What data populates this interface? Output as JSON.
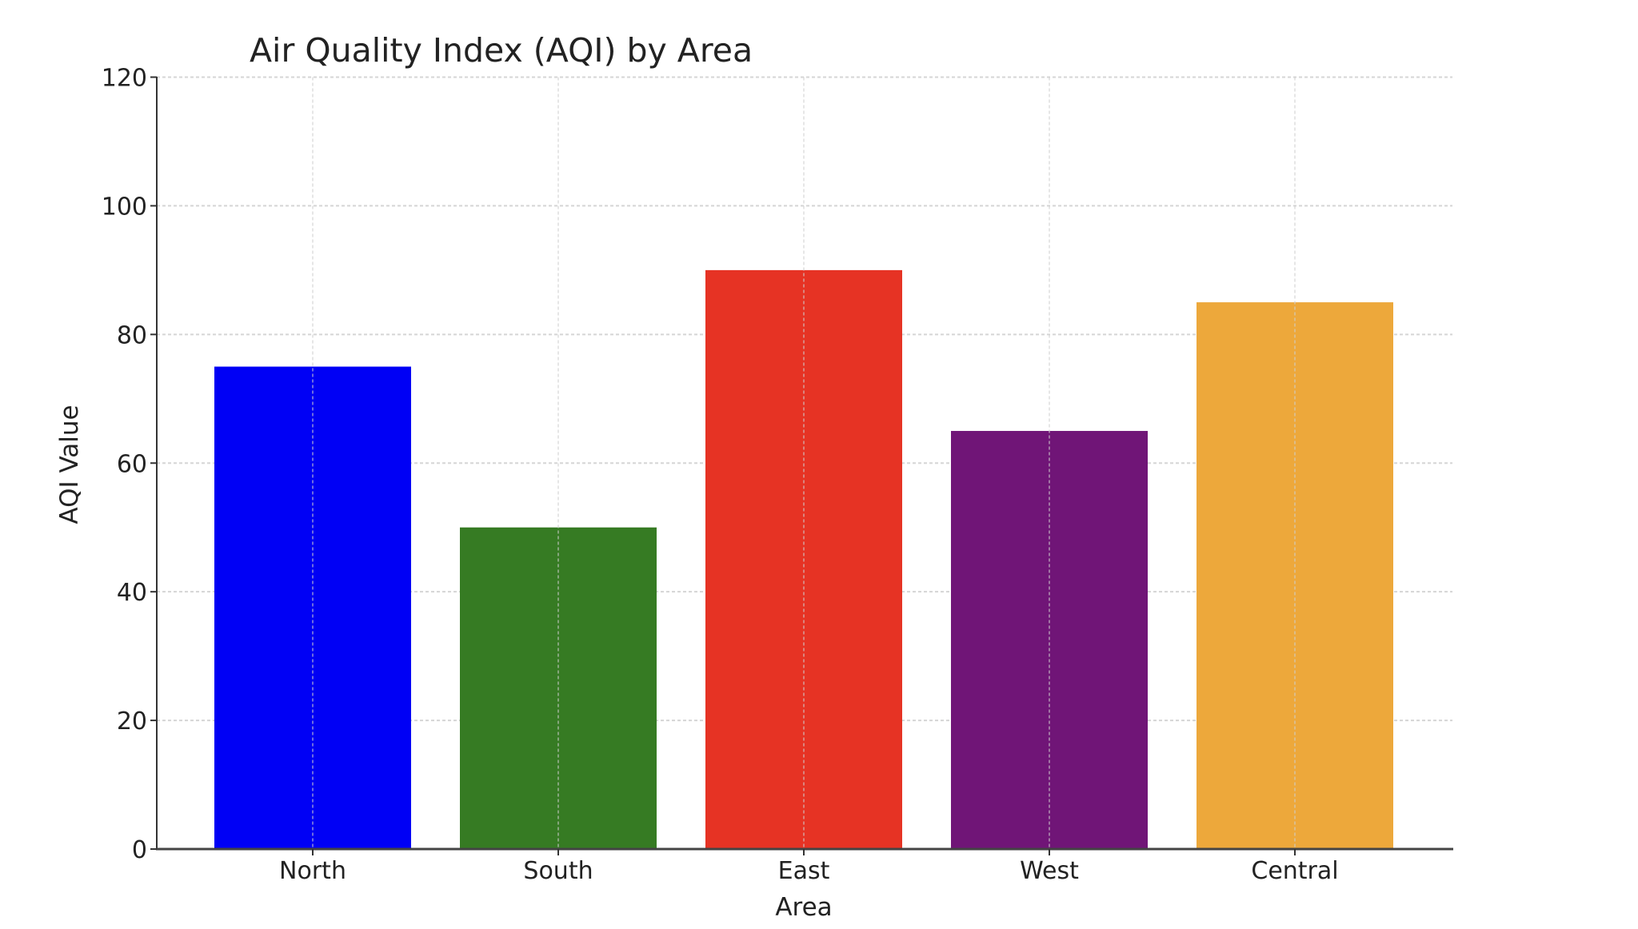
{
  "chart_data": {
    "type": "bar",
    "title": "Air Quality Index (AQI) by Area",
    "xlabel": "Area",
    "ylabel": "AQI Value",
    "categories": [
      "North",
      "South",
      "East",
      "West",
      "Central"
    ],
    "values": [
      75,
      50,
      90,
      65,
      85
    ],
    "colors": [
      "#0000f5",
      "#367b23",
      "#e63324",
      "#701577",
      "#eda83b"
    ],
    "ylim": [
      0,
      120
    ],
    "yticks": [
      "0",
      "20",
      "40",
      "60",
      "80",
      "100",
      "120"
    ],
    "grid": true
  }
}
